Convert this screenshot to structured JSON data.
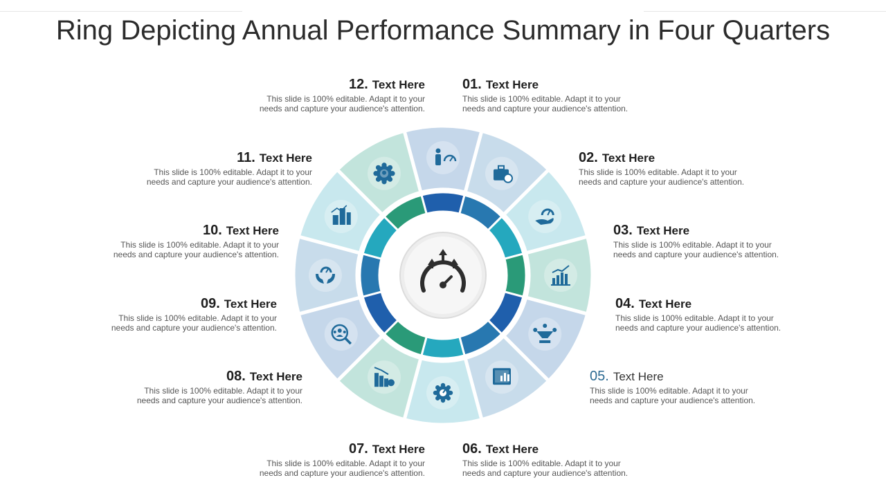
{
  "title": "Ring Depicting Annual Performance Summary in Four Quarters",
  "colors": {
    "outer": [
      "#c5d7ea",
      "#c8dceb",
      "#c8e8ee",
      "#c2e4dc",
      "#c5d7ea",
      "#c8dceb",
      "#c8e8ee",
      "#c2e4dc",
      "#c5d7ea",
      "#c8dceb",
      "#c8e8ee",
      "#c2e4dc"
    ],
    "inner": [
      "#1f5fac",
      "#2878b0",
      "#25a8be",
      "#2a9a78",
      "#1f5fac",
      "#2878b0",
      "#25a8be",
      "#2a9a78",
      "#1f5fac",
      "#2878b0",
      "#25a8be",
      "#2a9a78"
    ],
    "icon": "#1f6a9a",
    "hub": "#ededed",
    "highlight_number": "#2b6a92"
  },
  "center_icon": "speedometer-arrows-icon",
  "items": [
    {
      "number": "01.",
      "label": "Text Here",
      "desc_line1": "This slide is 100% editable. Adapt it to your",
      "desc_line2": "needs and capture your audience's attention.",
      "icon": "person-gauge-icon"
    },
    {
      "number": "02.",
      "label": "Text Here",
      "desc_line1": "This slide is 100% editable. Adapt it to your",
      "desc_line2": "needs and capture your audience's attention.",
      "icon": "briefcase-chart-icon"
    },
    {
      "number": "03.",
      "label": "Text Here",
      "desc_line1": "This slide is 100% editable. Adapt it to your",
      "desc_line2": "needs and capture your audience's attention.",
      "icon": "hand-gauge-icon"
    },
    {
      "number": "04.",
      "label": "Text Here",
      "desc_line1": "This slide is 100% editable. Adapt it to your",
      "desc_line2": "needs and capture your audience's attention.",
      "icon": "growth-chart-icon"
    },
    {
      "number": "05.",
      "label": "Text Here",
      "desc_line1": "This slide is 100% editable. Adapt it to your",
      "desc_line2": "needs and capture your audience's attention.",
      "icon": "network-gauge-icon"
    },
    {
      "number": "06.",
      "label": "Text Here",
      "desc_line1": "This slide is 100% editable. Adapt it to your",
      "desc_line2": "needs and capture your audience's attention.",
      "icon": "dollar-chart-icon"
    },
    {
      "number": "07.",
      "label": "Text Here",
      "desc_line1": "This slide is 100% editable. Adapt it to your",
      "desc_line2": "needs and capture your audience's attention.",
      "icon": "gear-gauge-icon"
    },
    {
      "number": "08.",
      "label": "Text Here",
      "desc_line1": "This slide is 100% editable. Adapt it to your",
      "desc_line2": "needs and capture your audience's attention.",
      "icon": "declining-chart-icon"
    },
    {
      "number": "09.",
      "label": "Text Here",
      "desc_line1": "This slide is 100% editable. Adapt it to your",
      "desc_line2": "needs and capture your audience's attention.",
      "icon": "team-search-icon"
    },
    {
      "number": "10.",
      "label": "Text Here",
      "desc_line1": "This slide is 100% editable. Adapt it to your",
      "desc_line2": "needs and capture your audience's attention.",
      "icon": "hands-gauge-icon"
    },
    {
      "number": "11.",
      "label": "Text Here",
      "desc_line1": "This slide is 100% editable. Adapt it to your",
      "desc_line2": "needs and capture your audience's attention.",
      "icon": "buildings-chart-icon"
    },
    {
      "number": "12.",
      "label": "Text Here",
      "desc_line1": "This slide is 100% editable. Adapt it to your",
      "desc_line2": "needs and capture your audience's attention.",
      "icon": "gear-head-icon"
    }
  ]
}
